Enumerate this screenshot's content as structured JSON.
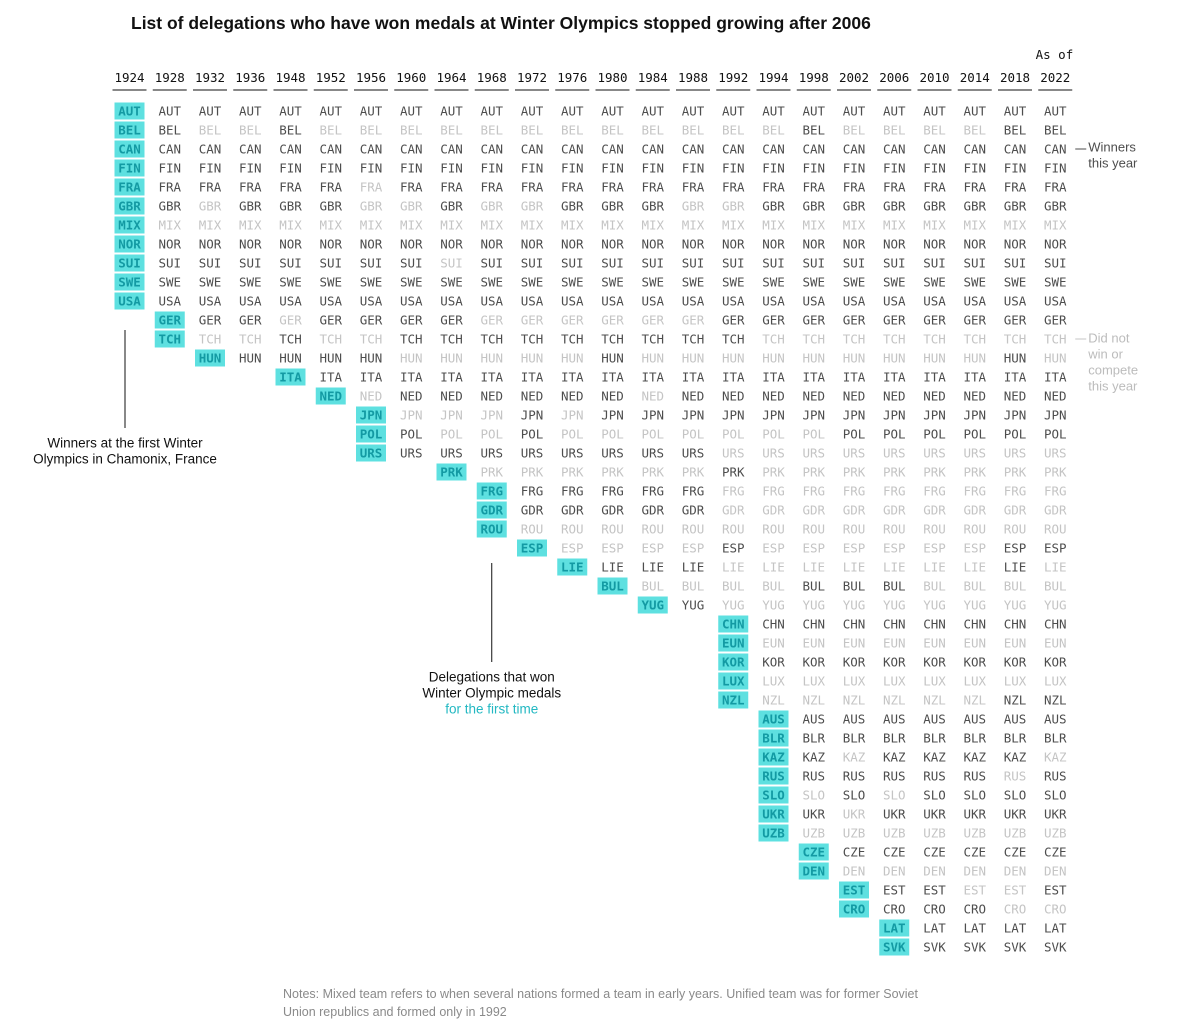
{
  "title": "List of delegations who have won medals at Winter Olympics stopped growing after 2006",
  "notes": "Notes: Mixed team refers to when several nations formed a team in early years. Unified team was for former Soviet Union republics and formed only in 1992",
  "colors": {
    "winner": "#4d4d4d",
    "not_winner": "#c4c4c4",
    "first_time_bg": "#5ee0e0",
    "first_time_text": "#139aa3",
    "text": "#111111"
  },
  "chart_data": {
    "type": "table",
    "as_of_label": "As of",
    "years": [
      "1924",
      "1928",
      "1932",
      "1936",
      "1948",
      "1952",
      "1956",
      "1960",
      "1964",
      "1968",
      "1972",
      "1976",
      "1980",
      "1984",
      "1988",
      "1992",
      "1994",
      "1998",
      "2002",
      "2006",
      "2010",
      "2014",
      "2018",
      "2022"
    ],
    "delegations": [
      {
        "code": "AUT",
        "first": "1924",
        "won": [
          "1924",
          "1928",
          "1932",
          "1936",
          "1948",
          "1952",
          "1956",
          "1960",
          "1964",
          "1968",
          "1972",
          "1976",
          "1980",
          "1984",
          "1988",
          "1992",
          "1994",
          "1998",
          "2002",
          "2006",
          "2010",
          "2014",
          "2018",
          "2022"
        ]
      },
      {
        "code": "BEL",
        "first": "1924",
        "won": [
          "1924",
          "1928",
          "1948",
          "1998",
          "2018",
          "2022"
        ]
      },
      {
        "code": "CAN",
        "first": "1924",
        "won": [
          "1924",
          "1928",
          "1932",
          "1936",
          "1948",
          "1952",
          "1956",
          "1960",
          "1964",
          "1968",
          "1972",
          "1976",
          "1980",
          "1984",
          "1988",
          "1992",
          "1994",
          "1998",
          "2002",
          "2006",
          "2010",
          "2014",
          "2018",
          "2022"
        ]
      },
      {
        "code": "FIN",
        "first": "1924",
        "won": [
          "1924",
          "1928",
          "1932",
          "1936",
          "1948",
          "1952",
          "1956",
          "1960",
          "1964",
          "1968",
          "1972",
          "1976",
          "1980",
          "1984",
          "1988",
          "1992",
          "1994",
          "1998",
          "2002",
          "2006",
          "2010",
          "2014",
          "2018",
          "2022"
        ]
      },
      {
        "code": "FRA",
        "first": "1924",
        "won": [
          "1924",
          "1928",
          "1932",
          "1936",
          "1948",
          "1952",
          "1960",
          "1964",
          "1968",
          "1972",
          "1976",
          "1980",
          "1984",
          "1988",
          "1992",
          "1994",
          "1998",
          "2002",
          "2006",
          "2010",
          "2014",
          "2018",
          "2022"
        ]
      },
      {
        "code": "GBR",
        "first": "1924",
        "won": [
          "1924",
          "1928",
          "1936",
          "1948",
          "1952",
          "1964",
          "1976",
          "1980",
          "1984",
          "1994",
          "1998",
          "2002",
          "2006",
          "2010",
          "2014",
          "2018",
          "2022"
        ]
      },
      {
        "code": "MIX",
        "first": "1924",
        "won": [
          "1924"
        ]
      },
      {
        "code": "NOR",
        "first": "1924",
        "won": [
          "1924",
          "1928",
          "1932",
          "1936",
          "1948",
          "1952",
          "1956",
          "1960",
          "1964",
          "1968",
          "1972",
          "1976",
          "1980",
          "1984",
          "1988",
          "1992",
          "1994",
          "1998",
          "2002",
          "2006",
          "2010",
          "2014",
          "2018",
          "2022"
        ]
      },
      {
        "code": "SUI",
        "first": "1924",
        "won": [
          "1924",
          "1928",
          "1932",
          "1936",
          "1948",
          "1952",
          "1956",
          "1960",
          "1968",
          "1972",
          "1976",
          "1980",
          "1984",
          "1988",
          "1992",
          "1994",
          "1998",
          "2002",
          "2006",
          "2010",
          "2014",
          "2018",
          "2022"
        ]
      },
      {
        "code": "SWE",
        "first": "1924",
        "won": [
          "1924",
          "1928",
          "1932",
          "1936",
          "1948",
          "1952",
          "1956",
          "1960",
          "1964",
          "1968",
          "1972",
          "1976",
          "1980",
          "1984",
          "1988",
          "1992",
          "1994",
          "1998",
          "2002",
          "2006",
          "2010",
          "2014",
          "2018",
          "2022"
        ]
      },
      {
        "code": "USA",
        "first": "1924",
        "won": [
          "1924",
          "1928",
          "1932",
          "1936",
          "1948",
          "1952",
          "1956",
          "1960",
          "1964",
          "1968",
          "1972",
          "1976",
          "1980",
          "1984",
          "1988",
          "1992",
          "1994",
          "1998",
          "2002",
          "2006",
          "2010",
          "2014",
          "2018",
          "2022"
        ]
      },
      {
        "code": "GER",
        "first": "1928",
        "won": [
          "1928",
          "1932",
          "1936",
          "1952",
          "1956",
          "1960",
          "1964",
          "1992",
          "1994",
          "1998",
          "2002",
          "2006",
          "2010",
          "2014",
          "2018",
          "2022"
        ]
      },
      {
        "code": "TCH",
        "first": "1928",
        "won": [
          "1928",
          "1948",
          "1960",
          "1964",
          "1968",
          "1972",
          "1976",
          "1980",
          "1984",
          "1988",
          "1992"
        ]
      },
      {
        "code": "HUN",
        "first": "1932",
        "won": [
          "1932",
          "1936",
          "1948",
          "1952",
          "1956",
          "1980",
          "2018"
        ]
      },
      {
        "code": "ITA",
        "first": "1948",
        "won": [
          "1948",
          "1952",
          "1956",
          "1960",
          "1964",
          "1968",
          "1972",
          "1976",
          "1980",
          "1984",
          "1988",
          "1992",
          "1994",
          "1998",
          "2002",
          "2006",
          "2010",
          "2014",
          "2018",
          "2022"
        ]
      },
      {
        "code": "NED",
        "first": "1952",
        "won": [
          "1952",
          "1960",
          "1964",
          "1968",
          "1972",
          "1976",
          "1980",
          "1988",
          "1992",
          "1994",
          "1998",
          "2002",
          "2006",
          "2010",
          "2014",
          "2018",
          "2022"
        ]
      },
      {
        "code": "JPN",
        "first": "1956",
        "won": [
          "1956",
          "1972",
          "1980",
          "1984",
          "1988",
          "1992",
          "1994",
          "1998",
          "2002",
          "2006",
          "2010",
          "2014",
          "2018",
          "2022"
        ]
      },
      {
        "code": "POL",
        "first": "1956",
        "won": [
          "1956",
          "1960",
          "1972",
          "2002",
          "2006",
          "2010",
          "2014",
          "2018",
          "2022"
        ]
      },
      {
        "code": "URS",
        "first": "1956",
        "won": [
          "1956",
          "1960",
          "1964",
          "1968",
          "1972",
          "1976",
          "1980",
          "1984",
          "1988"
        ]
      },
      {
        "code": "PRK",
        "first": "1964",
        "won": [
          "1964",
          "1992"
        ]
      },
      {
        "code": "FRG",
        "first": "1968",
        "won": [
          "1968",
          "1972",
          "1976",
          "1980",
          "1984",
          "1988"
        ]
      },
      {
        "code": "GDR",
        "first": "1968",
        "won": [
          "1968",
          "1972",
          "1976",
          "1980",
          "1984",
          "1988"
        ]
      },
      {
        "code": "ROU",
        "first": "1968",
        "won": [
          "1968"
        ]
      },
      {
        "code": "ESP",
        "first": "1972",
        "won": [
          "1972",
          "1992",
          "2018",
          "2022"
        ]
      },
      {
        "code": "LIE",
        "first": "1976",
        "won": [
          "1976",
          "1980",
          "1984",
          "1988",
          "2018"
        ]
      },
      {
        "code": "BUL",
        "first": "1980",
        "won": [
          "1980",
          "1998",
          "2002",
          "2006"
        ]
      },
      {
        "code": "YUG",
        "first": "1984",
        "won": [
          "1984",
          "1988"
        ]
      },
      {
        "code": "CHN",
        "first": "1992",
        "won": [
          "1992",
          "1994",
          "1998",
          "2002",
          "2006",
          "2010",
          "2014",
          "2018",
          "2022"
        ]
      },
      {
        "code": "EUN",
        "first": "1992",
        "won": [
          "1992"
        ]
      },
      {
        "code": "KOR",
        "first": "1992",
        "won": [
          "1992",
          "1994",
          "1998",
          "2002",
          "2006",
          "2010",
          "2014",
          "2018",
          "2022"
        ]
      },
      {
        "code": "LUX",
        "first": "1992",
        "won": [
          "1992"
        ]
      },
      {
        "code": "NZL",
        "first": "1992",
        "won": [
          "1992",
          "2018",
          "2022"
        ]
      },
      {
        "code": "AUS",
        "first": "1994",
        "won": [
          "1994",
          "1998",
          "2002",
          "2006",
          "2010",
          "2014",
          "2018",
          "2022"
        ]
      },
      {
        "code": "BLR",
        "first": "1994",
        "won": [
          "1994",
          "1998",
          "2002",
          "2006",
          "2010",
          "2014",
          "2018",
          "2022"
        ]
      },
      {
        "code": "KAZ",
        "first": "1994",
        "won": [
          "1994",
          "1998",
          "2006",
          "2010",
          "2014",
          "2018"
        ]
      },
      {
        "code": "RUS",
        "first": "1994",
        "won": [
          "1994",
          "1998",
          "2002",
          "2006",
          "2010",
          "2014",
          "2022"
        ]
      },
      {
        "code": "SLO",
        "first": "1994",
        "won": [
          "1994",
          "2002",
          "2010",
          "2014",
          "2018",
          "2022"
        ]
      },
      {
        "code": "UKR",
        "first": "1994",
        "won": [
          "1994",
          "1998",
          "2006",
          "2010",
          "2014",
          "2018",
          "2022"
        ]
      },
      {
        "code": "UZB",
        "first": "1994",
        "won": [
          "1994"
        ]
      },
      {
        "code": "CZE",
        "first": "1998",
        "won": [
          "1998",
          "2002",
          "2006",
          "2010",
          "2014",
          "2018",
          "2022"
        ]
      },
      {
        "code": "DEN",
        "first": "1998",
        "won": [
          "1998"
        ]
      },
      {
        "code": "EST",
        "first": "2002",
        "won": [
          "2002",
          "2006",
          "2010",
          "2022"
        ]
      },
      {
        "code": "CRO",
        "first": "2002",
        "won": [
          "2002",
          "2006",
          "2010",
          "2014"
        ]
      },
      {
        "code": "LAT",
        "first": "2006",
        "won": [
          "2006",
          "2010",
          "2014",
          "2018",
          "2022"
        ]
      },
      {
        "code": "SVK",
        "first": "2006",
        "won": [
          "2006",
          "2010",
          "2014",
          "2018",
          "2022"
        ]
      }
    ],
    "annotations": {
      "winners_label": [
        "Winners",
        "this year"
      ],
      "not_won_label": [
        "Did not",
        "win or",
        "compete",
        "this year"
      ],
      "first_winter_label": [
        "Winners at the first Winter",
        "Olympics in Chamonix, France"
      ],
      "first_time_label": [
        "Delegations that won",
        "Winter Olympic medals"
      ],
      "first_time_highlight": "for the first time"
    }
  }
}
